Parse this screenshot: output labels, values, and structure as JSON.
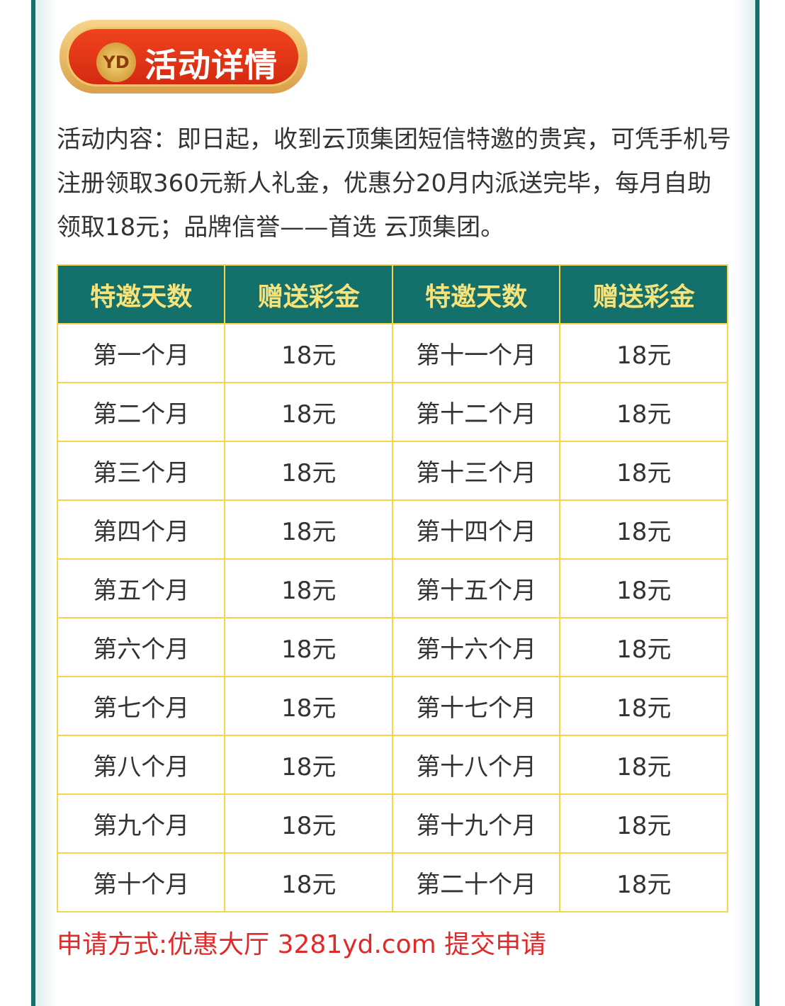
{
  "banner": {
    "title": "活动详情",
    "logo": "YD"
  },
  "description": "活动内容：即日起，收到云顶集团短信特邀的贵宾，可凭手机号注册领取360元新人礼金，优惠分20月内派送完毕，每月自助领取18元；品牌信誉——首选 云顶集团。",
  "table": {
    "headers": [
      "特邀天数",
      "赠送彩金",
      "特邀天数",
      "赠送彩金"
    ],
    "rows": [
      [
        "第一个月",
        "18元",
        "第十一个月",
        "18元"
      ],
      [
        "第二个月",
        "18元",
        "第十二个月",
        "18元"
      ],
      [
        "第三个月",
        "18元",
        "第十三个月",
        "18元"
      ],
      [
        "第四个月",
        "18元",
        "第十四个月",
        "18元"
      ],
      [
        "第五个月",
        "18元",
        "第十五个月",
        "18元"
      ],
      [
        "第六个月",
        "18元",
        "第十六个月",
        "18元"
      ],
      [
        "第七个月",
        "18元",
        "第十七个月",
        "18元"
      ],
      [
        "第八个月",
        "18元",
        "第十八个月",
        "18元"
      ],
      [
        "第九个月",
        "18元",
        "第十九个月",
        "18元"
      ],
      [
        "第十个月",
        "18元",
        "第二十个月",
        "18元"
      ]
    ]
  },
  "apply_text": "申请方式:优惠大厅 3281yd.com 提交申请",
  "colors": {
    "header_bg": "#14706a",
    "header_text": "#f8e27a",
    "border": "#f3d64a",
    "apply": "#e02a2a",
    "banner": "#e33a18"
  }
}
